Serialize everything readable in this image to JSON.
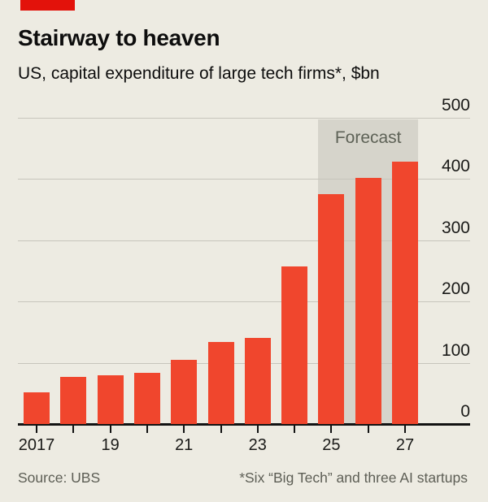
{
  "header": {
    "title": "Stairway to heaven",
    "subtitle": "US, capital expenditure of large tech firms*, $bn"
  },
  "chart_data": {
    "type": "bar",
    "title": "Stairway to heaven",
    "subtitle": "US, capital expenditure of large tech firms*, $bn",
    "x": [
      2017,
      2018,
      2019,
      2020,
      2021,
      2022,
      2023,
      2024,
      2025,
      2026,
      2027
    ],
    "values": [
      52,
      77,
      80,
      84,
      105,
      134,
      140,
      257,
      375,
      402,
      428
    ],
    "x_tick_labels": [
      "2017",
      "19",
      "21",
      "23",
      "25",
      "27"
    ],
    "x_tick_label_years": [
      2017,
      2019,
      2021,
      2023,
      2025,
      2027
    ],
    "y_ticks": [
      0,
      100,
      200,
      300,
      400,
      500
    ],
    "ylim": [
      0,
      500
    ],
    "yaxis_side": "right",
    "grid": true,
    "forecast": {
      "label": "Forecast",
      "start_year": 2025,
      "end_year": 2027
    }
  },
  "footer": {
    "source": "Source: UBS",
    "footnote": "*Six “Big Tech” and three AI startups"
  },
  "colors": {
    "background": "#EDEBE2",
    "bar": "#F0462D",
    "brand_tab": "#E3120B",
    "forecast_box": "#D6D4CB",
    "forecast_text": "#5E6257",
    "gridline": "#C7C5BC",
    "axis_line": "#121212",
    "axis_text": "#1A1A18",
    "title_text": "#0D0D0D",
    "muted_text": "#5D5E55"
  }
}
